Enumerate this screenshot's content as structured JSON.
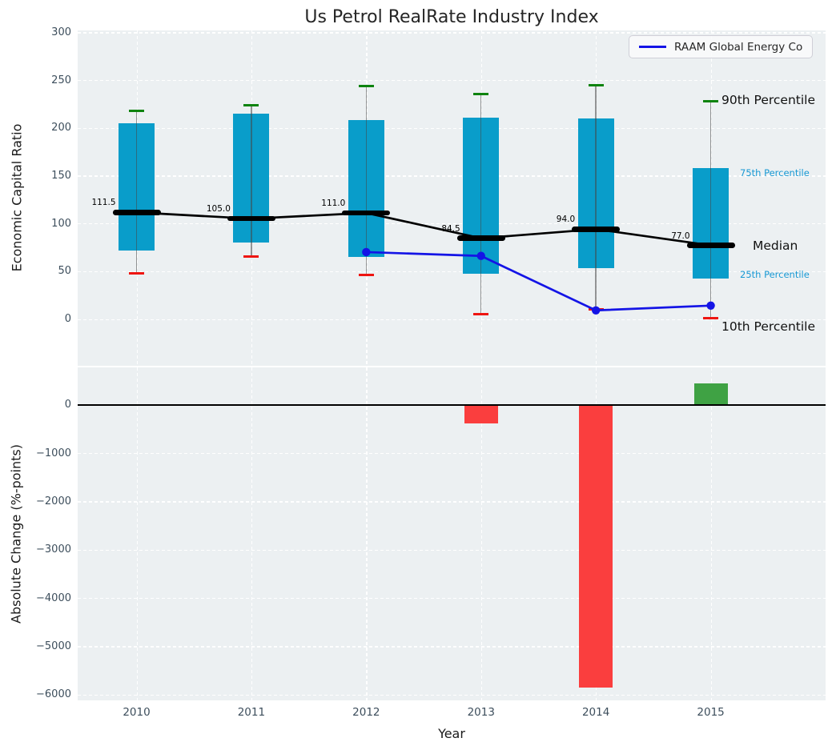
{
  "title": "Us Petrol RealRate Industry Index",
  "legend": {
    "label": "RAAM Global Energy Co"
  },
  "top_panel": {
    "ylabel": "Economic Capital Ratio",
    "ytick_values": [
      0,
      50,
      100,
      150,
      200,
      250,
      300
    ],
    "ytick_labels": [
      "0",
      "50",
      "100",
      "150",
      "200",
      "250",
      "300"
    ],
    "ylim": [
      -49,
      302
    ],
    "right_labels": {
      "p90": "90th Percentile",
      "p75": "75th Percentile",
      "median": "Median",
      "p25": "25th Percentile",
      "p10": "10th Percentile"
    }
  },
  "bottom_panel": {
    "xlabel": "Year",
    "ylabel": "Absolute Change (%-points)",
    "ytick_values": [
      0,
      -1000,
      -2000,
      -3000,
      -4000,
      -5000,
      -6000
    ],
    "ytick_labels": [
      "0",
      "−1000",
      "−2000",
      "−3000",
      "−4000",
      "−5000",
      "−6000"
    ],
    "ylim": [
      -6120,
      775
    ]
  },
  "chart_data": [
    {
      "type": "boxplot",
      "panel": "top",
      "title": "Us Petrol RealRate Industry Index",
      "ylabel": "Economic Capital Ratio",
      "categories": [
        "2010",
        "2011",
        "2012",
        "2013",
        "2014",
        "2015"
      ],
      "series": [
        {
          "name": "90th Percentile",
          "values": [
            218,
            224,
            244,
            235,
            245,
            228
          ]
        },
        {
          "name": "75th Percentile",
          "values": [
            205,
            215,
            208,
            211,
            210,
            158
          ]
        },
        {
          "name": "Median",
          "values": [
            111.5,
            105.0,
            111.0,
            84.5,
            94.0,
            77.0
          ]
        },
        {
          "name": "25th Percentile",
          "values": [
            72,
            80,
            65,
            47,
            53,
            42
          ]
        },
        {
          "name": "10th Percentile",
          "values": [
            48,
            65,
            46,
            5,
            10,
            1
          ]
        }
      ],
      "median_labels": [
        "111.5",
        "105.0",
        "111.0",
        "84.5",
        "94.0",
        "77.0"
      ],
      "company_line": {
        "name": "RAAM Global Energy Co",
        "x": [
          "2012",
          "2013",
          "2014",
          "2015"
        ],
        "values": [
          70,
          66,
          9,
          14
        ]
      },
      "grid": true,
      "legend_position": "upper right"
    },
    {
      "type": "bar",
      "panel": "bottom",
      "xlabel": "Year",
      "ylabel": "Absolute Change (%-points)",
      "categories": [
        "2010",
        "2011",
        "2012",
        "2013",
        "2014",
        "2015"
      ],
      "values": [
        0,
        0,
        0,
        -380,
        -5850,
        440
      ],
      "ylim": [
        -6120,
        775
      ],
      "grid": true
    }
  ],
  "colors": {
    "plot_background": "#ecf0f2",
    "box_fill": "#099dca",
    "whisker_line": "rgba(70,70,70,0.55)",
    "cap_90th": "#0e830f",
    "cap_10th": "#ee1511",
    "median_line": "#000000",
    "company_line": "#1414e6",
    "bar_negative": "#fa3e3e",
    "bar_positive": "#3fa244",
    "tick_label": "#3d4e5c",
    "small_percentile_label": "#1899d4",
    "big_percentile_label": "#111111"
  }
}
